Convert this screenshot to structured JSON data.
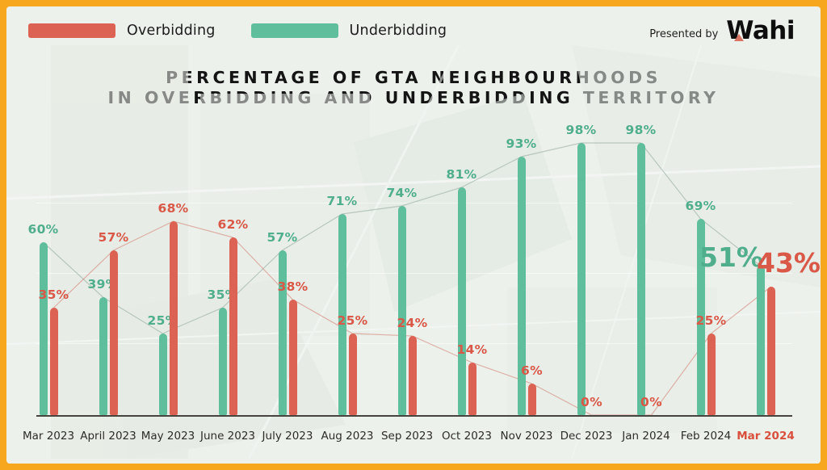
{
  "frame": {
    "border_color": "#F6A71D",
    "background": "#EDF1EC"
  },
  "legend": {
    "items": [
      {
        "label": "Overbidding",
        "color": "#DC6353"
      },
      {
        "label": "Underbidding",
        "color": "#5FBE9C"
      }
    ]
  },
  "attribution": {
    "presented_by": "Presented by",
    "brand": "Wahi"
  },
  "title": {
    "line1": "PERCENTAGE OF GTA NEIGHBOURHOODS",
    "line2": "IN OVERBIDDING AND UNDERBIDDING TERRITORY"
  },
  "chart_data": {
    "type": "bar",
    "title": "Percentage of GTA neighbourhoods in overbidding and underbidding territory",
    "categories": [
      "Mar 2023",
      "April 2023",
      "May 2023",
      "June 2023",
      "July 2023",
      "Aug 2023",
      "Sep 2023",
      "Oct 2023",
      "Nov 2023",
      "Dec 2023",
      "Jan 2024",
      "Feb 2024",
      "Mar 2024"
    ],
    "series": [
      {
        "name": "Underbidding",
        "side": "left",
        "color": "#5FBE9C",
        "label_color": "#4FAE8C",
        "values": [
          60,
          39,
          25,
          35,
          57,
          71,
          74,
          81,
          93,
          98,
          98,
          69,
          51
        ]
      },
      {
        "name": "Overbidding",
        "side": "right",
        "color": "#DC6353",
        "label_color": "#D95847",
        "values": [
          35,
          57,
          68,
          62,
          38,
          25,
          24,
          14,
          6,
          0,
          0,
          25,
          43
        ]
      }
    ],
    "value_suffix": "%",
    "ylim": [
      0,
      100
    ],
    "grid": "faint-horizontal",
    "legend_position": "top-left",
    "connector_lines": true,
    "connector_colors": {
      "Underbidding": "rgba(135,160,148,0.5)",
      "Overbidding": "rgba(208,112,98,0.5)"
    },
    "highlight_last_category": true,
    "highlight_color": "#D94F3B"
  }
}
